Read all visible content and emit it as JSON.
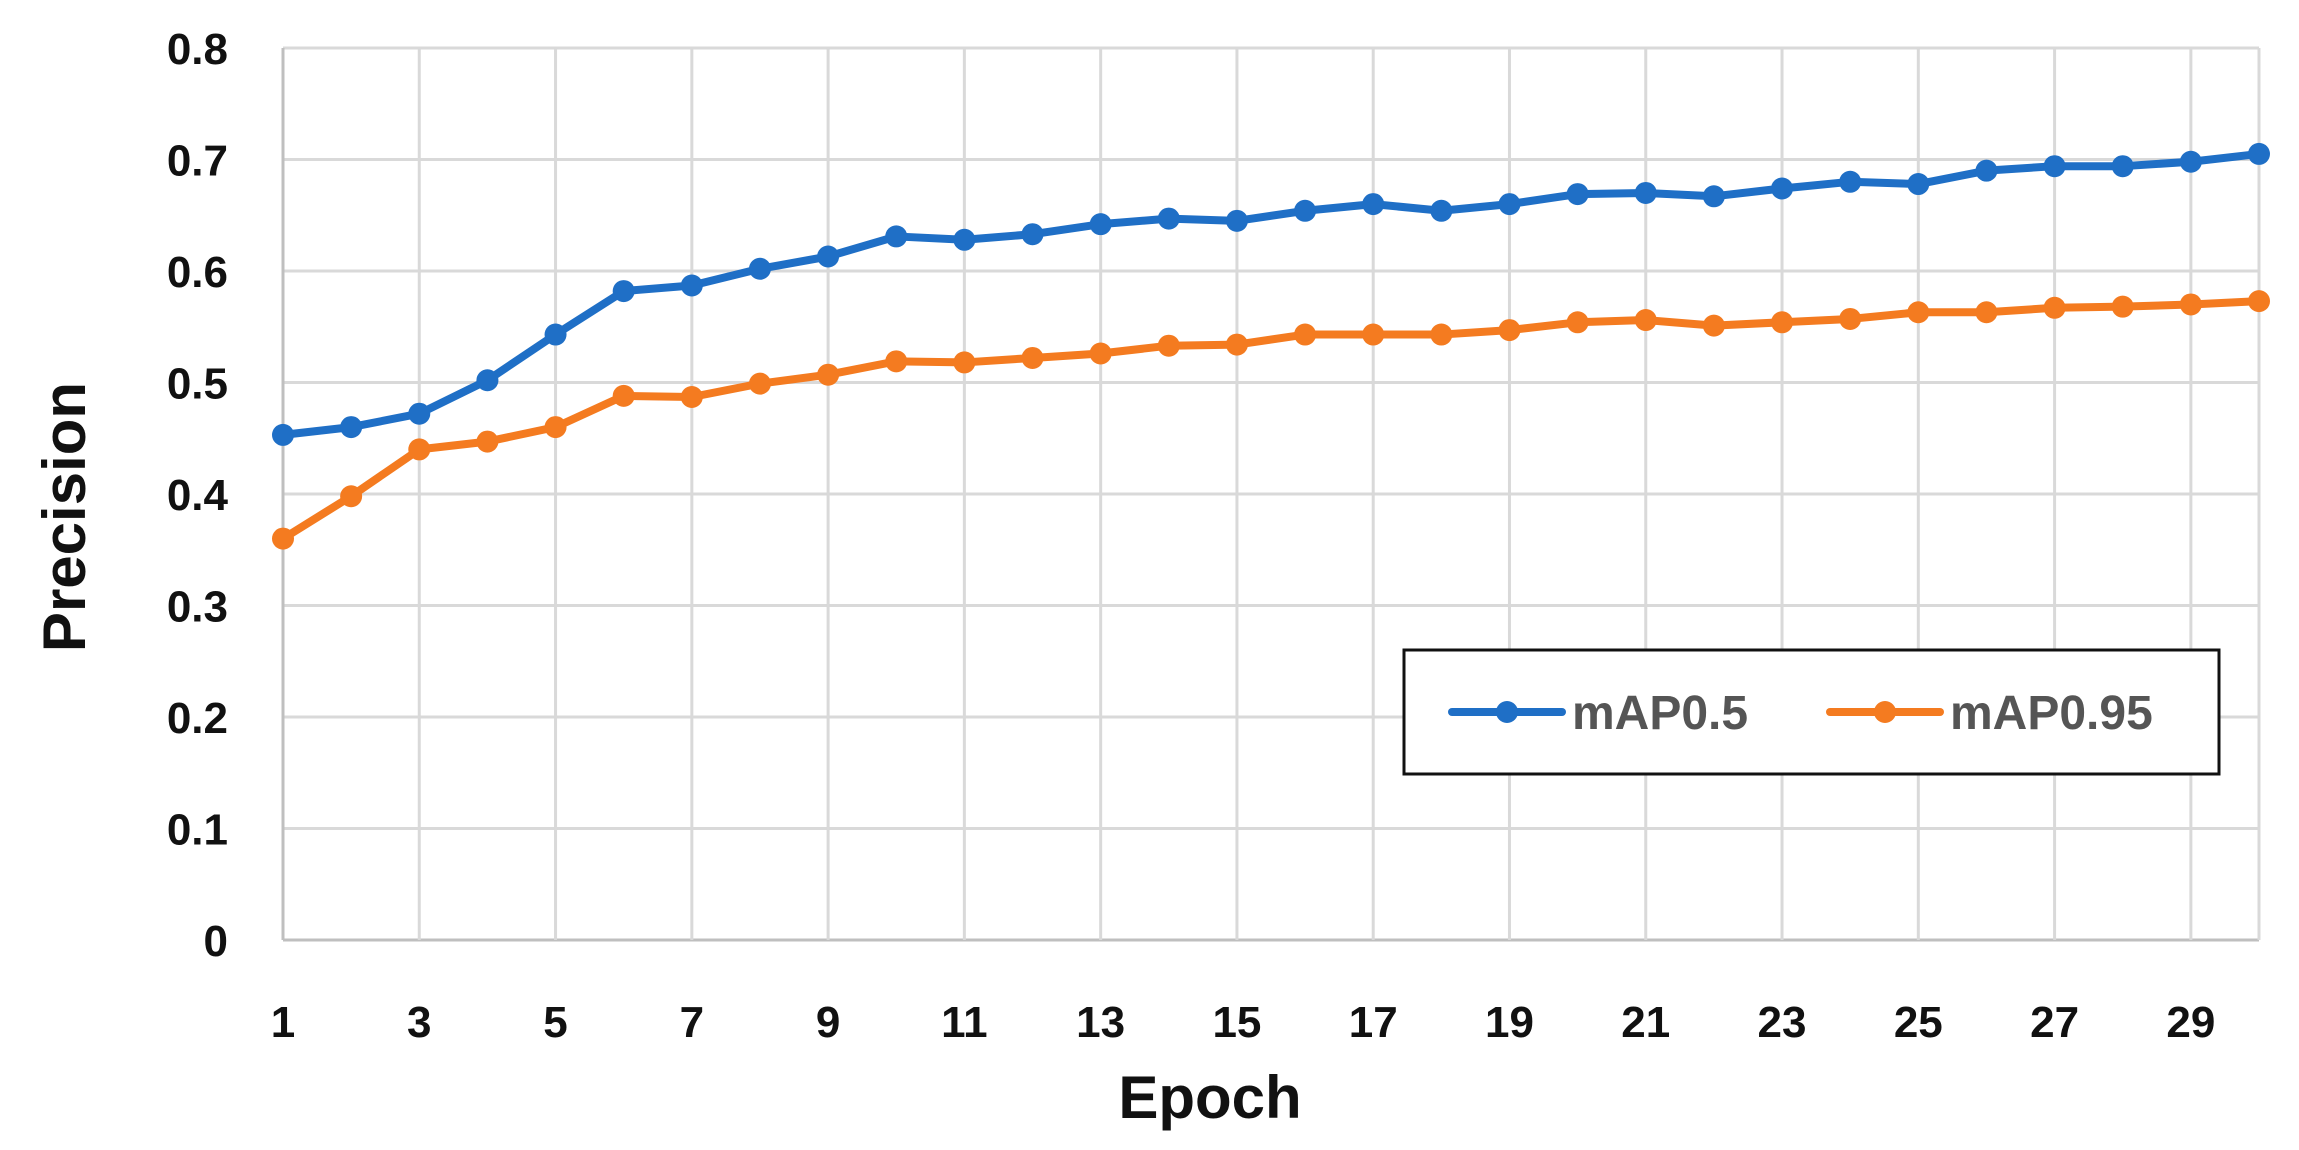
{
  "chart_data": {
    "type": "line",
    "title": "",
    "xlabel": "Epoch",
    "ylabel": "Precision",
    "x": [
      1,
      2,
      3,
      4,
      5,
      6,
      7,
      8,
      9,
      10,
      11,
      12,
      13,
      14,
      15,
      16,
      17,
      18,
      19,
      20,
      21,
      22,
      23,
      24,
      25,
      26,
      27,
      28,
      29,
      30
    ],
    "xticks": [
      1,
      3,
      5,
      7,
      9,
      11,
      13,
      15,
      17,
      19,
      21,
      23,
      25,
      27,
      29
    ],
    "yticks": [
      0,
      0.1,
      0.2,
      0.3,
      0.4,
      0.5,
      0.6,
      0.7,
      0.8
    ],
    "ytick_labels": [
      "0",
      "0.1",
      "0.2",
      "0.3",
      "0.4",
      "0.5",
      "0.6",
      "0.7",
      "0.8"
    ],
    "xlim": [
      1,
      30
    ],
    "ylim": [
      0,
      0.8
    ],
    "grid": true,
    "legend_position": "right-middle",
    "series": [
      {
        "name": "mAP0.5",
        "color": "#1f6fc6",
        "values": [
          0.453,
          0.46,
          0.472,
          0.502,
          0.543,
          0.582,
          0.587,
          0.602,
          0.613,
          0.631,
          0.628,
          0.633,
          0.642,
          0.647,
          0.645,
          0.654,
          0.66,
          0.654,
          0.66,
          0.669,
          0.67,
          0.667,
          0.674,
          0.68,
          0.678,
          0.69,
          0.694,
          0.694,
          0.698,
          0.705
        ]
      },
      {
        "name": "mAP0.95",
        "color": "#f47b20",
        "values": [
          0.36,
          0.398,
          0.44,
          0.447,
          0.46,
          0.488,
          0.487,
          0.499,
          0.507,
          0.519,
          0.518,
          0.522,
          0.526,
          0.533,
          0.534,
          0.543,
          0.543,
          0.543,
          0.547,
          0.554,
          0.556,
          0.551,
          0.554,
          0.557,
          0.563,
          0.563,
          0.567,
          0.568,
          0.57,
          0.573
        ]
      }
    ]
  }
}
